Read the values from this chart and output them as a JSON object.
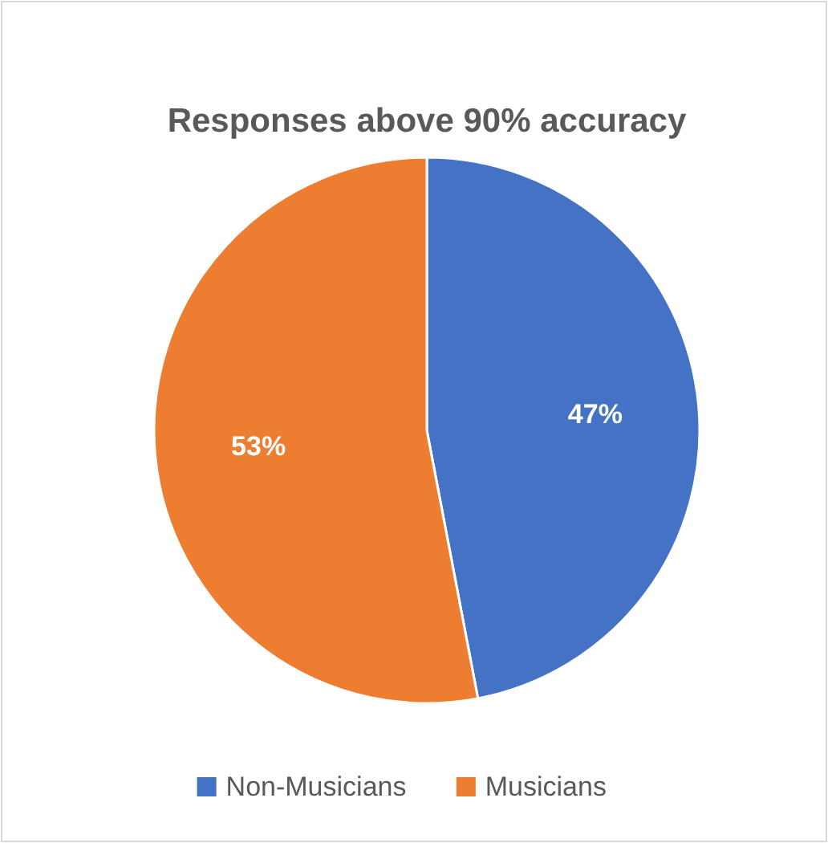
{
  "chart_data": {
    "type": "pie",
    "title": "Responses above 90% accuracy",
    "categories": [
      "Non-Musicians",
      "Musicians"
    ],
    "values": [
      47,
      53
    ],
    "colors": [
      "#4472c4",
      "#ed7d31"
    ],
    "value_labels": [
      "47%",
      "53%"
    ],
    "legend": "bottom"
  }
}
